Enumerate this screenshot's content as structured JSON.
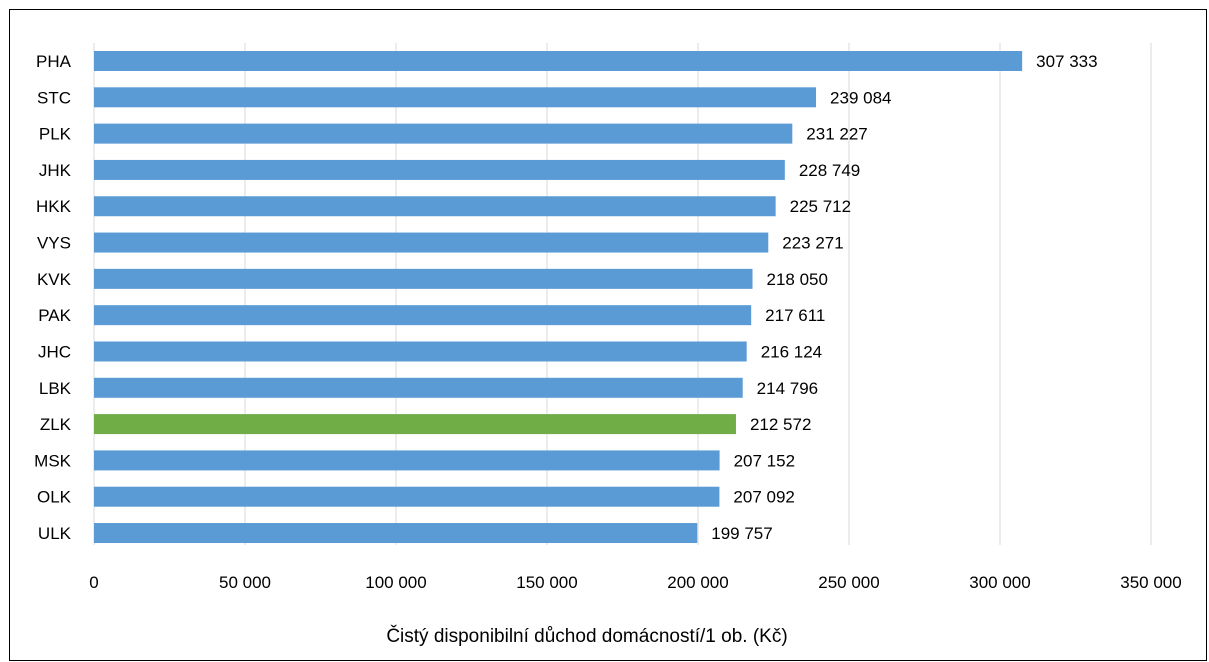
{
  "chart_data": {
    "type": "bar",
    "orientation": "horizontal",
    "title": "",
    "xlabel": "Čistý disponibilní důchod domácností/1 ob. (Kč)",
    "ylabel": "",
    "xlim": [
      0,
      350000
    ],
    "x_ticks": [
      0,
      50000,
      100000,
      150000,
      200000,
      250000,
      300000,
      350000
    ],
    "x_tick_labels": [
      "0",
      "50 000",
      "100 000",
      "150 000",
      "200 000",
      "250 000",
      "300 000",
      "350 000"
    ],
    "grid": "vertical",
    "legend": "none",
    "categories": [
      "PHA",
      "STC",
      "PLK",
      "JHK",
      "HKK",
      "VYS",
      "KVK",
      "PAK",
      "JHC",
      "LBK",
      "ZLK",
      "MSK",
      "OLK",
      "ULK"
    ],
    "values": [
      307333,
      239084,
      231227,
      228749,
      225712,
      223271,
      218050,
      217611,
      216124,
      214796,
      212572,
      207152,
      207092,
      199757
    ],
    "value_labels": [
      "307 333",
      "239 084",
      "231 227",
      "228 749",
      "225 712",
      "223 271",
      "218 050",
      "217 611",
      "216 124",
      "214 796",
      "212 572",
      "207 152",
      "207 092",
      "199 757"
    ],
    "highlight_category": "ZLK",
    "colors": {
      "bar": "#5b9bd5",
      "highlight": "#70ad47",
      "grid": "#d9d9d9",
      "text": "#000000"
    }
  }
}
